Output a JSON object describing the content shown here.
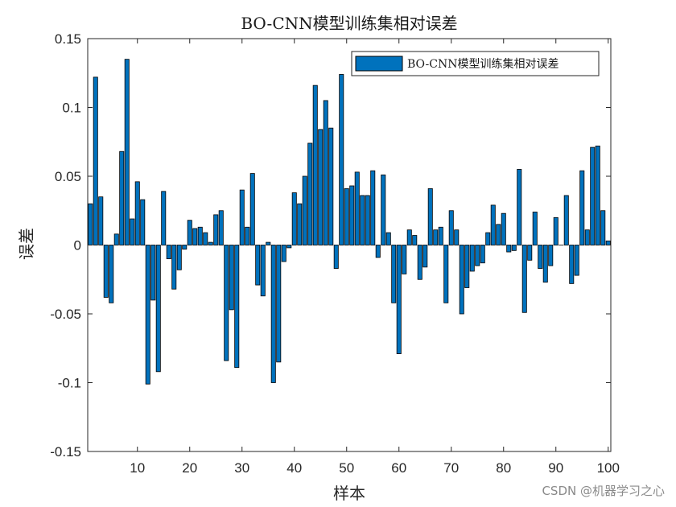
{
  "chart_data": {
    "type": "bar",
    "title": "BO-CNN模型训练集相对误差",
    "xlabel": "样本",
    "ylabel": "误差",
    "xlim": [
      0.5,
      100.5
    ],
    "ylim": [
      -0.15,
      0.15
    ],
    "x_ticks": [
      10,
      20,
      30,
      40,
      50,
      60,
      70,
      80,
      90,
      100
    ],
    "y_ticks": [
      -0.15,
      -0.1,
      -0.05,
      0,
      0.05,
      0.1,
      0.15
    ],
    "y_tick_labels": [
      "-0.15",
      "-0.1",
      "-0.05",
      "0",
      "0.05",
      "0.1",
      "0.15"
    ],
    "grid": false,
    "legend_position": "top-right",
    "series": [
      {
        "name": "BO-CNN模型训练集相对误差",
        "color": "#0072BD",
        "values": [
          0.03,
          0.122,
          0.035,
          -0.038,
          -0.042,
          0.008,
          0.068,
          0.135,
          0.019,
          0.046,
          0.033,
          -0.101,
          -0.04,
          -0.092,
          0.039,
          -0.01,
          -0.032,
          -0.018,
          -0.003,
          0.018,
          0.012,
          0.013,
          0.009,
          0.002,
          0.022,
          0.025,
          -0.084,
          -0.047,
          -0.089,
          0.04,
          0.013,
          0.052,
          -0.029,
          -0.037,
          0.002,
          -0.1,
          -0.085,
          -0.012,
          -0.002,
          0.038,
          0.03,
          0.05,
          0.074,
          0.116,
          0.084,
          0.105,
          0.085,
          -0.017,
          0.124,
          0.041,
          0.043,
          0.053,
          0.036,
          0.036,
          0.054,
          -0.009,
          0.051,
          0.009,
          -0.042,
          -0.079,
          -0.021,
          0.011,
          0.007,
          -0.025,
          -0.016,
          0.041,
          0.011,
          0.013,
          -0.042,
          0.025,
          0.011,
          -0.05,
          -0.031,
          -0.019,
          -0.015,
          -0.013,
          0.009,
          0.029,
          0.015,
          0.023,
          -0.005,
          -0.004,
          0.055,
          -0.049,
          -0.011,
          0.024,
          -0.017,
          -0.027,
          -0.015,
          0.02,
          0.0,
          0.036,
          -0.028,
          -0.022,
          0.054,
          0.011,
          0.071,
          0.072,
          0.025,
          0.003
        ]
      }
    ]
  },
  "watermark": "CSDN @机器学习之心"
}
